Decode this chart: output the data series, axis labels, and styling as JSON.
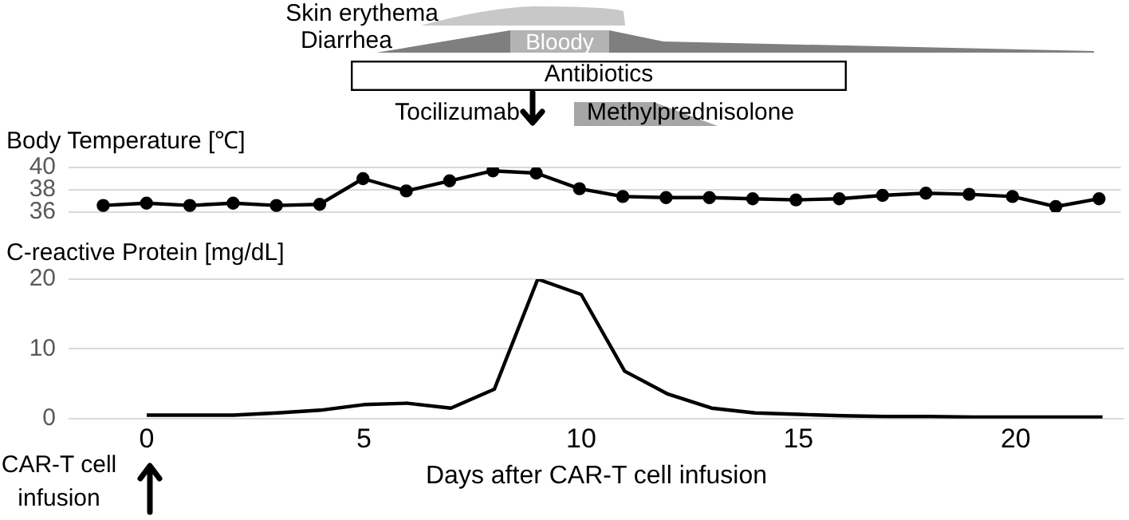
{
  "chart_data": [
    {
      "type": "line",
      "ylabel": "Body Temperature [℃]",
      "x": [
        -1,
        0,
        1,
        2,
        3,
        4,
        5,
        6,
        7,
        8,
        9,
        10,
        11,
        12,
        13,
        14,
        15,
        16,
        17,
        18,
        19,
        20,
        21,
        22
      ],
      "series": [
        {
          "color": "#000000",
          "values": [
            36.6,
            36.8,
            36.6,
            36.8,
            36.6,
            36.7,
            39.0,
            37.9,
            38.8,
            39.7,
            39.5,
            38.1,
            37.4,
            37.3,
            37.3,
            37.2,
            37.1,
            37.2,
            37.5,
            37.7,
            37.6,
            37.4,
            36.5,
            37.2
          ]
        }
      ],
      "xlim": [
        -1.8,
        22.5
      ],
      "ylim": [
        36,
        40
      ],
      "yticks": [
        36,
        38,
        40
      ],
      "grid": "y",
      "marker": "circle",
      "tick_labels": "y",
      "annotations": [
        "Skin erythema",
        "Diarrhea",
        "Bloody",
        "Antibiotics",
        "Tocilizumab",
        "Methylprednisolone"
      ]
    },
    {
      "type": "line",
      "ylabel": "C-reactive Protein [mg/dL]",
      "xlabel": "Days after CAR-T cell infusion",
      "x": [
        0,
        1,
        2,
        3,
        4,
        5,
        6,
        7,
        8,
        9,
        10,
        11,
        12,
        13,
        14,
        15,
        16,
        17,
        18,
        19,
        20,
        21,
        22
      ],
      "series": [
        {
          "color": "#000000",
          "values": [
            0.5,
            0.5,
            0.5,
            0.8,
            1.2,
            2.0,
            2.2,
            1.5,
            4.2,
            20,
            17.8,
            6.8,
            3.5,
            1.5,
            0.8,
            0.6,
            0.4,
            0.3,
            0.3,
            0.2,
            0.2,
            0.2,
            0.2
          ]
        }
      ],
      "xlim": [
        -1.8,
        22.5
      ],
      "xticks": [
        0,
        5,
        10,
        15,
        20
      ],
      "ylim": [
        0,
        20
      ],
      "yticks": [
        0,
        10,
        20
      ],
      "grid": "y",
      "marker": "none",
      "annotations": [
        "CAR-T cell infusion"
      ]
    }
  ]
}
